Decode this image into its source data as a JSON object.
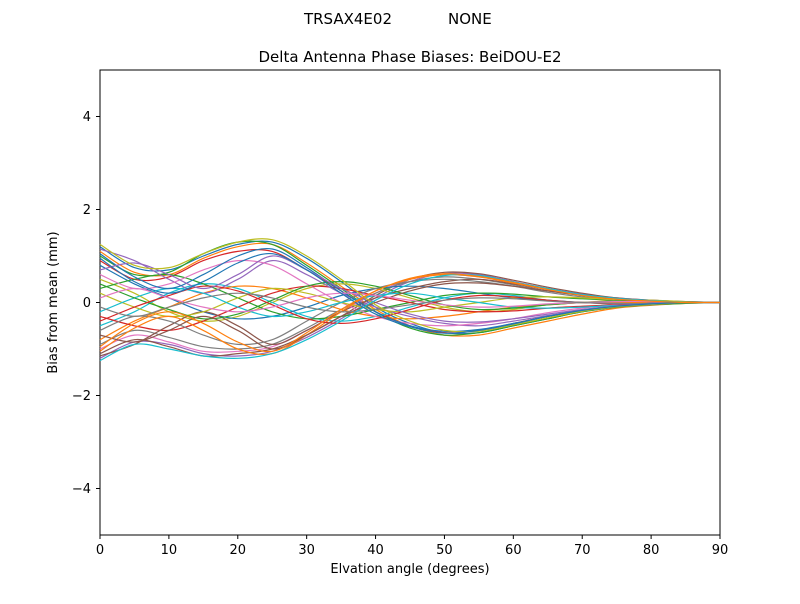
{
  "figure": {
    "background": "#ffffff",
    "frame_color": "#000000"
  },
  "suptitle": {
    "left": "TRSAX4E02",
    "right": "NONE"
  },
  "chart_data": {
    "type": "line",
    "title": "Delta Antenna Phase Biases: BeiDOU-E2",
    "xlabel": "Elvation angle (degrees)",
    "ylabel": "Bias from mean (mm)",
    "xlim": [
      0,
      90
    ],
    "ylim": [
      -5,
      5
    ],
    "xticks": [
      0,
      10,
      20,
      30,
      40,
      50,
      60,
      70,
      80,
      90
    ],
    "yticks": [
      -4,
      -2,
      0,
      2,
      4
    ],
    "grid": false,
    "legend": "none",
    "x": [
      0,
      5,
      10,
      15,
      20,
      25,
      30,
      35,
      40,
      45,
      50,
      55,
      60,
      65,
      70,
      75,
      80,
      85,
      90
    ],
    "palette": [
      "#1f77b4",
      "#ff7f0e",
      "#2ca02c",
      "#d62728",
      "#9467bd",
      "#8c564b",
      "#e377c2",
      "#7f7f7f",
      "#bcbd22",
      "#17becf"
    ],
    "series": [
      [
        1.2,
        0.75,
        0.7,
        1.0,
        1.25,
        1.3,
        0.95,
        0.45,
        -0.1,
        -0.45,
        -0.65,
        -0.65,
        -0.5,
        -0.35,
        -0.2,
        -0.1,
        -0.05,
        0.0,
        0.0
      ],
      [
        1.1,
        0.65,
        0.6,
        0.95,
        1.2,
        1.25,
        0.85,
        0.35,
        -0.15,
        -0.5,
        -0.7,
        -0.7,
        -0.55,
        -0.4,
        -0.25,
        -0.12,
        -0.06,
        -0.02,
        0.0
      ],
      [
        1.0,
        0.6,
        0.65,
        1.05,
        1.3,
        1.25,
        0.8,
        0.3,
        -0.2,
        -0.55,
        -0.7,
        -0.65,
        -0.5,
        -0.35,
        -0.2,
        -0.1,
        -0.05,
        -0.02,
        0.0
      ],
      [
        0.9,
        0.5,
        0.55,
        0.9,
        1.1,
        1.1,
        0.7,
        0.25,
        -0.2,
        -0.5,
        -0.65,
        -0.6,
        -0.45,
        -0.3,
        -0.18,
        -0.08,
        -0.04,
        0.0,
        0.0
      ],
      [
        -1.2,
        -0.85,
        -0.9,
        -1.1,
        -1.15,
        -1.05,
        -0.75,
        -0.35,
        0.1,
        0.45,
        0.62,
        0.6,
        0.45,
        0.3,
        0.18,
        0.1,
        0.05,
        0.02,
        0.0
      ],
      [
        -1.1,
        -0.8,
        -0.95,
        -1.15,
        -1.1,
        -1.0,
        -0.7,
        -0.3,
        0.15,
        0.5,
        0.65,
        0.62,
        0.48,
        0.33,
        0.2,
        0.1,
        0.05,
        0.02,
        0.0
      ],
      [
        -1.0,
        -0.7,
        -0.85,
        -1.05,
        -1.05,
        -0.95,
        -0.6,
        -0.2,
        0.2,
        0.5,
        0.6,
        0.55,
        0.42,
        0.28,
        0.16,
        0.08,
        0.04,
        0.0,
        0.0
      ],
      [
        -0.9,
        -0.6,
        -0.75,
        -0.95,
        -1.0,
        -0.9,
        -0.55,
        -0.15,
        0.2,
        0.45,
        0.55,
        0.5,
        0.38,
        0.25,
        0.15,
        0.07,
        0.03,
        0.0,
        0.0
      ],
      [
        0.5,
        0.2,
        -0.2,
        -0.4,
        -0.3,
        0.0,
        0.3,
        0.4,
        0.3,
        0.1,
        -0.1,
        -0.2,
        -0.15,
        -0.05,
        0.0,
        0.05,
        0.05,
        0.02,
        0.0
      ],
      [
        -0.5,
        -0.2,
        0.2,
        0.4,
        0.3,
        0.0,
        -0.3,
        -0.4,
        -0.3,
        -0.1,
        0.1,
        0.2,
        0.15,
        0.05,
        0.0,
        -0.03,
        -0.03,
        0.0,
        0.0
      ],
      [
        0.8,
        0.4,
        0.1,
        -0.2,
        -0.35,
        -0.3,
        -0.1,
        0.15,
        0.3,
        0.35,
        0.3,
        0.2,
        0.1,
        0.05,
        0.0,
        0.0,
        0.0,
        0.0,
        0.0
      ],
      [
        -0.8,
        -0.4,
        -0.1,
        0.2,
        0.35,
        0.3,
        0.1,
        -0.15,
        -0.3,
        -0.35,
        -0.3,
        -0.2,
        -0.1,
        -0.05,
        0.0,
        0.0,
        0.0,
        0.0,
        0.0
      ],
      [
        0.3,
        0.5,
        0.6,
        0.4,
        0.1,
        -0.2,
        -0.35,
        -0.3,
        -0.15,
        0.0,
        0.15,
        0.2,
        0.18,
        0.12,
        0.08,
        0.05,
        0.02,
        0.0,
        0.0
      ],
      [
        -0.3,
        -0.5,
        -0.6,
        -0.4,
        -0.1,
        0.2,
        0.35,
        0.3,
        0.15,
        0.0,
        -0.15,
        -0.2,
        -0.18,
        -0.12,
        -0.08,
        -0.05,
        -0.02,
        0.0,
        0.0
      ],
      [
        1.15,
        0.9,
        0.5,
        0.2,
        0.5,
        0.9,
        0.6,
        0.2,
        -0.1,
        -0.3,
        -0.45,
        -0.5,
        -0.4,
        -0.28,
        -0.16,
        -0.08,
        -0.03,
        0.0,
        0.0
      ],
      [
        -1.15,
        -0.9,
        -0.5,
        -0.2,
        -0.5,
        -0.9,
        -0.6,
        -0.2,
        0.1,
        0.3,
        0.45,
        0.5,
        0.4,
        0.28,
        0.16,
        0.08,
        0.03,
        0.0,
        0.0
      ],
      [
        0.6,
        0.3,
        0.4,
        0.7,
        0.9,
        0.8,
        0.4,
        0.0,
        -0.3,
        -0.45,
        -0.5,
        -0.45,
        -0.35,
        -0.22,
        -0.12,
        -0.05,
        -0.02,
        0.0,
        0.0
      ],
      [
        -0.6,
        -0.3,
        -0.4,
        -0.7,
        -0.9,
        -0.8,
        -0.4,
        0.0,
        0.3,
        0.45,
        0.5,
        0.45,
        0.35,
        0.22,
        0.12,
        0.05,
        0.02,
        0.0,
        0.0
      ],
      [
        0.2,
        -0.1,
        -0.3,
        -0.2,
        0.1,
        0.3,
        0.2,
        0.0,
        -0.15,
        -0.2,
        -0.1,
        0.0,
        0.1,
        0.12,
        0.1,
        0.06,
        0.03,
        0.0,
        0.0
      ],
      [
        -0.2,
        0.1,
        0.3,
        0.2,
        -0.1,
        -0.3,
        -0.2,
        0.0,
        0.15,
        0.2,
        0.1,
        0.0,
        -0.1,
        -0.12,
        -0.1,
        -0.06,
        -0.03,
        0.0,
        0.0
      ],
      [
        1.05,
        0.55,
        0.3,
        0.6,
        1.0,
        1.15,
        0.75,
        0.25,
        -0.2,
        -0.5,
        -0.62,
        -0.58,
        -0.45,
        -0.3,
        -0.18,
        -0.09,
        -0.04,
        0.0,
        0.0
      ],
      [
        -1.05,
        -0.55,
        -0.3,
        -0.6,
        -1.0,
        -1.1,
        -0.7,
        -0.2,
        0.25,
        0.5,
        0.6,
        0.55,
        0.42,
        0.28,
        0.16,
        0.08,
        0.03,
        0.0,
        0.0
      ],
      [
        0.4,
        0.1,
        -0.15,
        -0.35,
        -0.25,
        0.05,
        0.35,
        0.45,
        0.35,
        0.15,
        -0.05,
        -0.15,
        -0.12,
        -0.05,
        0.0,
        0.03,
        0.03,
        0.0,
        0.0
      ],
      [
        -0.4,
        -0.1,
        0.15,
        0.35,
        0.25,
        -0.05,
        -0.35,
        -0.45,
        -0.35,
        -0.15,
        0.05,
        0.15,
        0.12,
        0.05,
        0.0,
        -0.03,
        -0.03,
        0.0,
        0.0
      ],
      [
        0.7,
        0.85,
        0.6,
        0.3,
        0.6,
        1.0,
        0.7,
        0.3,
        0.0,
        -0.25,
        -0.4,
        -0.42,
        -0.35,
        -0.25,
        -0.15,
        -0.07,
        -0.02,
        0.0,
        0.0
      ],
      [
        -0.7,
        -0.85,
        -0.6,
        -0.3,
        -0.6,
        -1.0,
        -0.7,
        -0.3,
        0.0,
        0.25,
        0.4,
        0.42,
        0.35,
        0.25,
        0.15,
        0.07,
        0.02,
        0.0,
        0.0
      ],
      [
        0.1,
        0.3,
        0.1,
        -0.1,
        -0.2,
        -0.1,
        0.1,
        0.2,
        0.15,
        0.05,
        -0.05,
        -0.1,
        -0.08,
        -0.03,
        0.0,
        0.02,
        0.02,
        0.0,
        0.0
      ],
      [
        -0.1,
        -0.3,
        -0.1,
        0.1,
        0.2,
        0.1,
        -0.1,
        -0.2,
        -0.15,
        -0.05,
        0.05,
        0.1,
        0.08,
        0.03,
        0.0,
        -0.02,
        -0.02,
        0.0,
        0.0
      ],
      [
        1.25,
        0.8,
        0.75,
        1.05,
        1.3,
        1.35,
        1.0,
        0.5,
        -0.05,
        -0.4,
        -0.6,
        -0.62,
        -0.48,
        -0.33,
        -0.19,
        -0.09,
        -0.04,
        0.0,
        0.0
      ],
      [
        -1.25,
        -0.9,
        -1.0,
        -1.15,
        -1.2,
        -1.1,
        -0.8,
        -0.4,
        0.05,
        0.4,
        0.58,
        0.58,
        0.44,
        0.3,
        0.17,
        0.09,
        0.04,
        0.0,
        0.0
      ],
      [
        0.95,
        0.45,
        0.2,
        0.45,
        0.85,
        1.05,
        0.7,
        0.2,
        -0.25,
        -0.52,
        -0.66,
        -0.6,
        -0.46,
        -0.3,
        -0.17,
        -0.08,
        -0.03,
        0.0,
        0.0
      ],
      [
        -0.95,
        -0.45,
        -0.2,
        -0.45,
        -0.85,
        -1.05,
        -0.65,
        -0.15,
        0.25,
        0.52,
        0.62,
        0.56,
        0.43,
        0.28,
        0.15,
        0.07,
        0.03,
        0.0,
        0.0
      ]
    ]
  }
}
